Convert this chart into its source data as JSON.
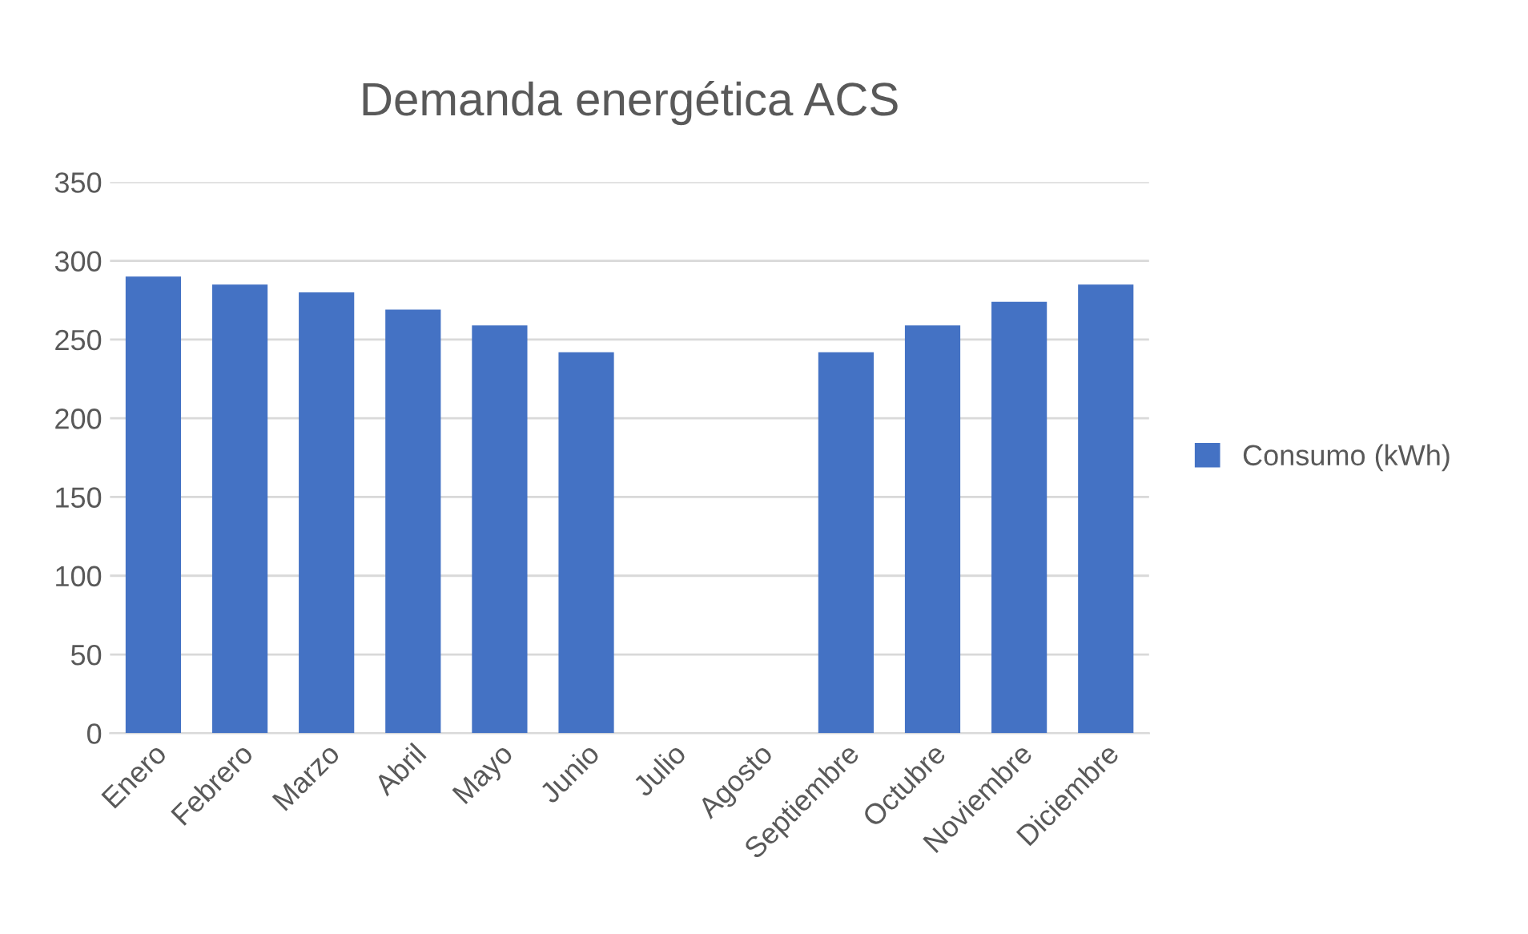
{
  "chart_data": {
    "type": "bar",
    "title": "Demanda energética ACS",
    "categories": [
      "Enero",
      "Febrero",
      "Marzo",
      "Abril",
      "Mayo",
      "Junio",
      "Julio",
      "Agosto",
      "Septiembre",
      "Octubre",
      "Noviembre",
      "Diciembre"
    ],
    "series": [
      {
        "name": "Consumo (kWh)",
        "color": "#4472c4",
        "values": [
          290,
          285,
          280,
          269,
          259,
          242,
          0,
          0,
          242,
          259,
          274,
          285
        ]
      }
    ],
    "ylim": [
      0,
      350
    ],
    "yticks": [
      0,
      50,
      100,
      150,
      200,
      250,
      300,
      350
    ],
    "grid": "y",
    "legend": "right"
  }
}
